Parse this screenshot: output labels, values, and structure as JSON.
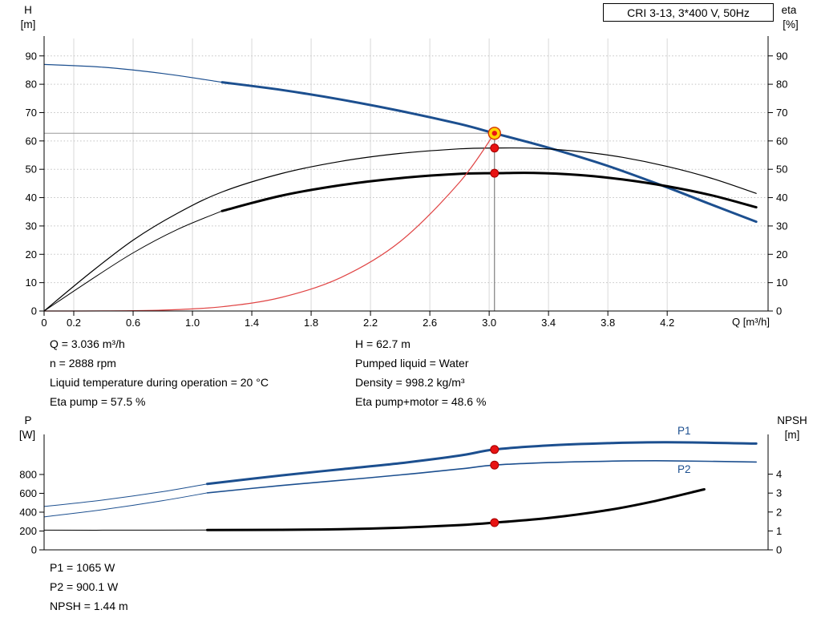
{
  "colors": {
    "curve_blue": "#1c4f8f",
    "curve_black": "#000000",
    "system_red": "#e04545",
    "marker_red": "#e81313",
    "marker_yellow": "#ffd400",
    "crosshair_gray": "#999999",
    "grid_gray": "#d8d8d8"
  },
  "operating_data": {
    "left": [
      "Q = 3.036 m³/h",
      "n = 2888 rpm",
      "Liquid temperature during operation = 20 °C",
      "Eta pump = 57.5 %"
    ],
    "right": [
      "H = 62.7 m",
      "Pumped liquid = Water",
      "Density = 998.2 kg/m³",
      "Eta pump+motor = 48.6 %"
    ]
  },
  "result_data": [
    "P1 = 1065 W",
    "P2 = 900.1 W",
    "NPSH = 1.44 m"
  ],
  "chart_data": [
    {
      "type": "line",
      "title": "CRI 3-13, 3*400 V, 50Hz",
      "x": {
        "label": "Q [m³/h]",
        "min": 0,
        "max": 4.88,
        "ticks": [
          "0",
          "0.2",
          "0.6",
          "1.0",
          "1.4",
          "1.8",
          "2.2",
          "2.6",
          "3.0",
          "3.4",
          "3.8",
          "4.2"
        ]
      },
      "y_left": {
        "label": "H",
        "unit": "[m]",
        "min": 0,
        "max": 97,
        "ticks": [
          0,
          10,
          20,
          30,
          40,
          50,
          60,
          70,
          80,
          90
        ]
      },
      "y_right": {
        "label": "eta",
        "unit": "[%]",
        "min": 0,
        "max": 97,
        "ticks": [
          0,
          10,
          20,
          30,
          40,
          50,
          60,
          70,
          80,
          90
        ]
      },
      "grid": true,
      "duty_point": {
        "q": 3.036,
        "h": 62.7
      },
      "series": [
        {
          "id": "qh-curve-thin",
          "name": "Q/H curve (below min flow)",
          "color": "#1c4f8f",
          "width": 1.2,
          "points": [
            [
              0,
              87
            ],
            [
              0.4,
              86
            ],
            [
              0.8,
              83.8
            ],
            [
              1.2,
              80.7
            ]
          ]
        },
        {
          "id": "qh-curve",
          "name": "Q/H curve",
          "color": "#1c4f8f",
          "width": 3,
          "points": [
            [
              1.2,
              80.7
            ],
            [
              1.6,
              78
            ],
            [
              2.0,
              74.6
            ],
            [
              2.4,
              70.6
            ],
            [
              2.8,
              66
            ],
            [
              3.036,
              62.7
            ],
            [
              3.4,
              57.6
            ],
            [
              3.8,
              51.2
            ],
            [
              4.2,
              43.6
            ],
            [
              4.5,
              37.5
            ],
            [
              4.8,
              31.5
            ]
          ]
        },
        {
          "id": "eta-pump-curve",
          "name": "Eta pump",
          "color": "#000000",
          "width": 1.2,
          "points": [
            [
              0,
              0
            ],
            [
              0.3,
              13
            ],
            [
              0.6,
              25
            ],
            [
              0.9,
              34.5
            ],
            [
              1.2,
              42
            ],
            [
              1.6,
              48.5
            ],
            [
              2.0,
              52.8
            ],
            [
              2.4,
              55.6
            ],
            [
              2.8,
              57.2
            ],
            [
              3.036,
              57.5
            ],
            [
              3.3,
              57.4
            ],
            [
              3.6,
              56.3
            ],
            [
              3.9,
              54.2
            ],
            [
              4.2,
              51
            ],
            [
              4.5,
              46.8
            ],
            [
              4.8,
              41.5
            ]
          ]
        },
        {
          "id": "eta-motor-curve-thin",
          "name": "Eta pump+motor (below min flow)",
          "color": "#000000",
          "width": 1,
          "points": [
            [
              0,
              0
            ],
            [
              0.3,
              10.5
            ],
            [
              0.6,
              20.5
            ],
            [
              0.9,
              28.8
            ],
            [
              1.2,
              35.3
            ]
          ]
        },
        {
          "id": "eta-motor-curve",
          "name": "Eta pump+motor",
          "color": "#000000",
          "width": 3,
          "points": [
            [
              1.2,
              35.3
            ],
            [
              1.6,
              40.7
            ],
            [
              2.0,
              44.4
            ],
            [
              2.4,
              46.9
            ],
            [
              2.8,
              48.4
            ],
            [
              3.036,
              48.6
            ],
            [
              3.3,
              48.7
            ],
            [
              3.6,
              48
            ],
            [
              3.9,
              46.4
            ],
            [
              4.2,
              44
            ],
            [
              4.5,
              40.8
            ],
            [
              4.8,
              36.6
            ]
          ]
        },
        {
          "id": "system-curve",
          "name": "System curve",
          "color": "#e04545",
          "width": 1.2,
          "points": [
            [
              0,
              0
            ],
            [
              0.4,
              0.02
            ],
            [
              0.8,
              0.3
            ],
            [
              1.2,
              1.5
            ],
            [
              1.6,
              4.8
            ],
            [
              2.0,
              11.8
            ],
            [
              2.4,
              24.5
            ],
            [
              2.8,
              45.4
            ],
            [
              3.036,
              62.7
            ]
          ]
        }
      ],
      "markers": [
        {
          "name": "duty-point",
          "q": 3.036,
          "v": 62.7,
          "style": "duty"
        },
        {
          "name": "eta-pump-point",
          "q": 3.036,
          "v": 57.5,
          "style": "dot"
        },
        {
          "name": "eta-motor-point",
          "q": 3.036,
          "v": 48.6,
          "style": "dot"
        }
      ]
    },
    {
      "type": "line",
      "x": {
        "label": "",
        "min": 0,
        "max": 4.88,
        "ticks": []
      },
      "y_left": {
        "label": "P",
        "unit": "[W]",
        "min": 0,
        "max": 1225,
        "ticks": [
          0,
          200,
          400,
          600,
          800
        ]
      },
      "y_right": {
        "label": "NPSH",
        "unit": "[m]",
        "min": 0,
        "max": 6.1,
        "ticks": [
          0,
          1,
          2,
          3,
          4
        ]
      },
      "grid": false,
      "series": [
        {
          "id": "p1-curve-thin",
          "name": "P1 (below min flow)",
          "axis": "left",
          "color": "#1c4f8f",
          "width": 1,
          "points": [
            [
              0,
              460
            ],
            [
              0.4,
              530
            ],
            [
              0.8,
              618
            ],
            [
              1.1,
              700
            ]
          ]
        },
        {
          "id": "p1-curve",
          "name": "P1",
          "axis": "left",
          "color": "#1c4f8f",
          "width": 3,
          "points": [
            [
              1.1,
              700
            ],
            [
              1.6,
              790
            ],
            [
              2.0,
              855
            ],
            [
              2.4,
              920
            ],
            [
              2.8,
              1000
            ],
            [
              3.036,
              1065
            ],
            [
              3.4,
              1108
            ],
            [
              3.8,
              1132
            ],
            [
              4.2,
              1142
            ],
            [
              4.8,
              1128
            ]
          ]
        },
        {
          "id": "p2-curve-thin",
          "name": "P2 (below min flow)",
          "axis": "left",
          "color": "#1c4f8f",
          "width": 1,
          "points": [
            [
              0,
              350
            ],
            [
              0.4,
              428
            ],
            [
              0.8,
              522
            ],
            [
              1.1,
              605
            ]
          ]
        },
        {
          "id": "p2-curve",
          "name": "P2",
          "axis": "left",
          "color": "#1c4f8f",
          "width": 1.6,
          "points": [
            [
              1.1,
              605
            ],
            [
              1.6,
              683
            ],
            [
              2.0,
              738
            ],
            [
              2.4,
              795
            ],
            [
              2.8,
              858
            ],
            [
              3.036,
              900
            ],
            [
              3.4,
              926
            ],
            [
              3.8,
              941
            ],
            [
              4.2,
              945
            ],
            [
              4.8,
              932
            ]
          ]
        },
        {
          "id": "npsh-curve-thin",
          "name": "NPSH (below min flow)",
          "axis": "right",
          "color": "#000000",
          "width": 1,
          "points": [
            [
              0,
              1.04
            ],
            [
              0.6,
              1.04
            ],
            [
              1.1,
              1.05
            ]
          ]
        },
        {
          "id": "npsh-curve",
          "name": "NPSH",
          "axis": "right",
          "color": "#000000",
          "width": 3,
          "points": [
            [
              1.1,
              1.05
            ],
            [
              1.6,
              1.06
            ],
            [
              2.0,
              1.09
            ],
            [
              2.4,
              1.17
            ],
            [
              2.8,
              1.31
            ],
            [
              3.036,
              1.44
            ],
            [
              3.4,
              1.68
            ],
            [
              3.8,
              2.1
            ],
            [
              4.1,
              2.55
            ],
            [
              4.45,
              3.2
            ]
          ]
        }
      ],
      "series_labels": [
        {
          "text": "P1"
        },
        {
          "text": "P2"
        }
      ],
      "markers": [
        {
          "name": "p1-point",
          "q": 3.036,
          "v": 1065,
          "axis": "left",
          "style": "dot"
        },
        {
          "name": "p2-point",
          "q": 3.036,
          "v": 900.1,
          "axis": "left",
          "style": "dot"
        },
        {
          "name": "npsh-point",
          "q": 3.036,
          "v": 1.44,
          "axis": "right",
          "style": "dot"
        }
      ]
    }
  ]
}
